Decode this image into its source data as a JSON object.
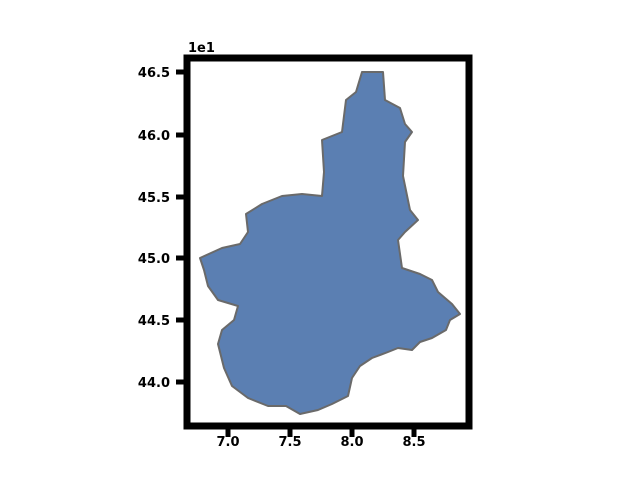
{
  "figure": {
    "region_fill": "#5b7fb2",
    "region_edge": "#6a6a6a",
    "frame_color": "#000000",
    "background": "#ffffff"
  },
  "y_ticks": [
    {
      "label": "46.5"
    },
    {
      "label": "46.0"
    },
    {
      "label": "45.5"
    },
    {
      "label": "45.0"
    },
    {
      "label": "44.5"
    },
    {
      "label": "44.0"
    }
  ],
  "x_ticks": [
    {
      "label": "7.0"
    },
    {
      "label": "7.5"
    },
    {
      "label": "8.0"
    },
    {
      "label": "8.5"
    }
  ],
  "offset_label": "1e1"
}
